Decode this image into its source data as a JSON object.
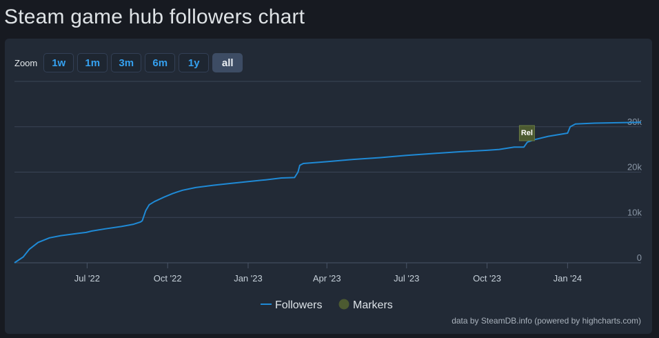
{
  "page": {
    "title": "Steam game hub followers chart"
  },
  "zoom": {
    "label": "Zoom",
    "buttons": [
      {
        "label": "1w",
        "active": false
      },
      {
        "label": "1m",
        "active": false
      },
      {
        "label": "3m",
        "active": false
      },
      {
        "label": "6m",
        "active": false
      },
      {
        "label": "1y",
        "active": false
      },
      {
        "label": "all",
        "active": true
      }
    ]
  },
  "chart_data": {
    "type": "line",
    "title": "",
    "xlabel": "",
    "ylabel": "",
    "xlim": [
      "2022-04-09",
      "2024-03-25"
    ],
    "ylim": [
      0,
      40000
    ],
    "grid": "horizontal",
    "x_ticks": [
      {
        "date": "2022-07-01",
        "label": "Jul '22"
      },
      {
        "date": "2022-10-01",
        "label": "Oct '22"
      },
      {
        "date": "2023-01-01",
        "label": "Jan '23"
      },
      {
        "date": "2023-04-01",
        "label": "Apr '23"
      },
      {
        "date": "2023-07-01",
        "label": "Jul '23"
      },
      {
        "date": "2023-10-01",
        "label": "Oct '23"
      },
      {
        "date": "2024-01-01",
        "label": "Jan '24"
      }
    ],
    "y_ticks": [
      {
        "value": 0,
        "label": "0"
      },
      {
        "value": 10000,
        "label": "10k"
      },
      {
        "value": 20000,
        "label": "20k"
      },
      {
        "value": 30000,
        "label": "30k"
      }
    ],
    "series": [
      {
        "name": "Followers",
        "color": "#1f8ad6",
        "points": [
          [
            "2022-04-09",
            0
          ],
          [
            "2022-04-19",
            1300
          ],
          [
            "2022-04-26",
            3000
          ],
          [
            "2022-05-06",
            4500
          ],
          [
            "2022-05-19",
            5500
          ],
          [
            "2022-06-01",
            6000
          ],
          [
            "2022-06-21",
            6500
          ],
          [
            "2022-06-30",
            6700
          ],
          [
            "2022-07-06",
            7000
          ],
          [
            "2022-07-22",
            7500
          ],
          [
            "2022-08-09",
            8000
          ],
          [
            "2022-08-23",
            8500
          ],
          [
            "2022-08-31",
            9000
          ],
          [
            "2022-09-02",
            9300
          ],
          [
            "2022-09-06",
            11500
          ],
          [
            "2022-09-10",
            12800
          ],
          [
            "2022-09-16",
            13500
          ],
          [
            "2022-09-27",
            14500
          ],
          [
            "2022-10-07",
            15300
          ],
          [
            "2022-10-18",
            16000
          ],
          [
            "2022-11-02",
            16600
          ],
          [
            "2022-11-22",
            17100
          ],
          [
            "2022-12-12",
            17500
          ],
          [
            "2023-01-01",
            17900
          ],
          [
            "2023-01-21",
            18300
          ],
          [
            "2023-02-08",
            18700
          ],
          [
            "2023-02-23",
            18800
          ],
          [
            "2023-02-27",
            20000
          ],
          [
            "2023-03-01",
            21500
          ],
          [
            "2023-03-05",
            21900
          ],
          [
            "2023-04-01",
            22300
          ],
          [
            "2023-05-01",
            22800
          ],
          [
            "2023-06-01",
            23200
          ],
          [
            "2023-07-01",
            23700
          ],
          [
            "2023-08-01",
            24100
          ],
          [
            "2023-09-01",
            24500
          ],
          [
            "2023-10-01",
            24800
          ],
          [
            "2023-10-15",
            25000
          ],
          [
            "2023-11-01",
            25500
          ],
          [
            "2023-11-12",
            25500
          ],
          [
            "2023-11-16",
            26600
          ],
          [
            "2023-11-25",
            27200
          ],
          [
            "2023-12-10",
            27900
          ],
          [
            "2024-01-01",
            28600
          ],
          [
            "2024-01-04",
            30000
          ],
          [
            "2024-01-10",
            30600
          ],
          [
            "2024-02-01",
            30800
          ],
          [
            "2024-03-25",
            31000
          ]
        ]
      }
    ],
    "markers": [
      {
        "date": "2023-11-14",
        "label": "Rel",
        "color": "#4c5a31"
      }
    ],
    "legend": {
      "position": "bottom-center",
      "items": [
        {
          "label": "Followers",
          "color": "#1f8ad6",
          "symbol": "line"
        },
        {
          "label": "Markers",
          "color": "#4c5a31",
          "symbol": "circle"
        }
      ]
    },
    "credits": "data by SteamDB.info (powered by highcharts.com)"
  }
}
